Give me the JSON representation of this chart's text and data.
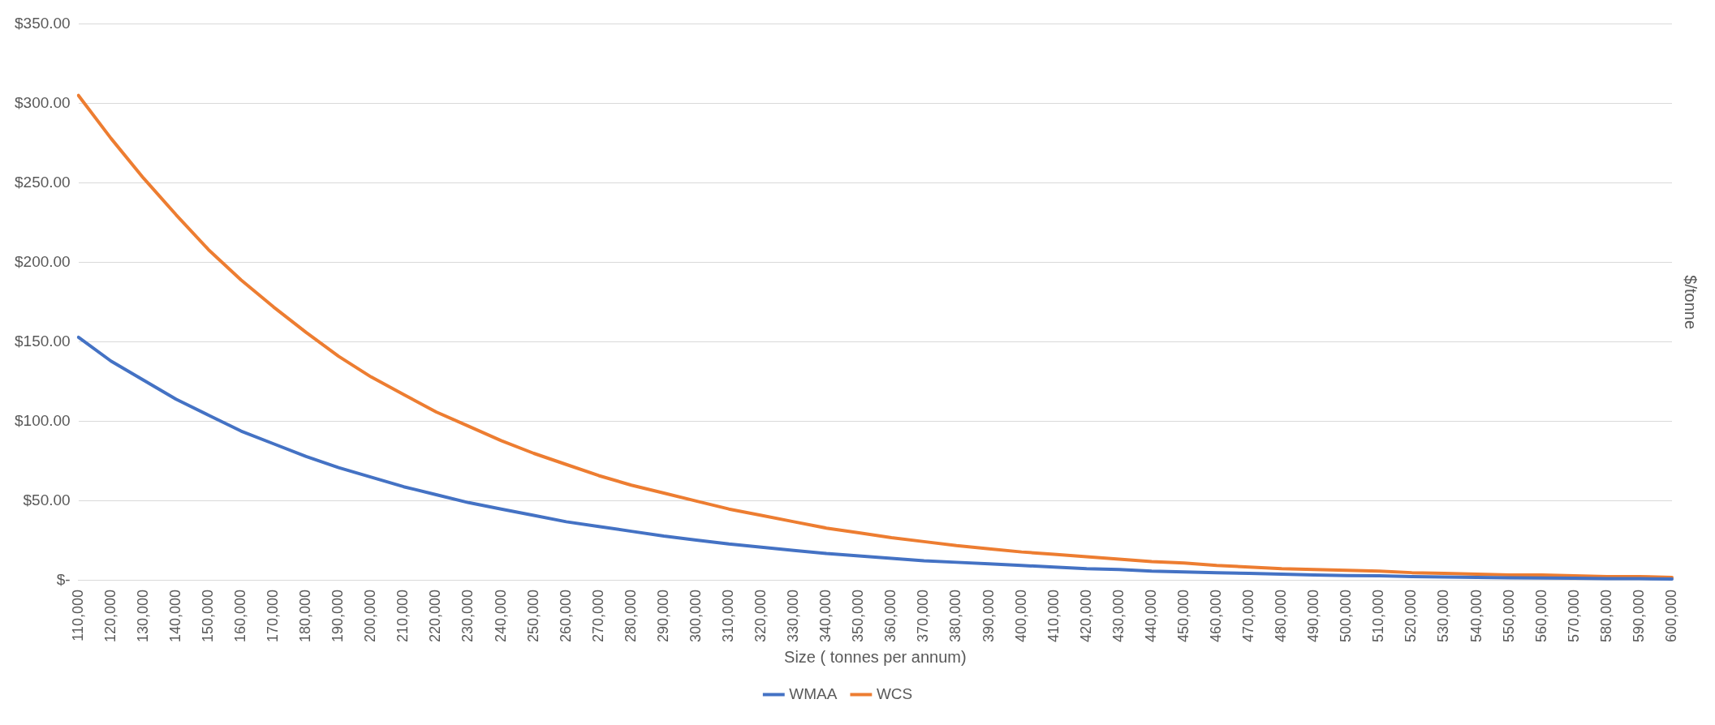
{
  "chart_data": {
    "type": "line",
    "xlabel": "Size ( tonnes per annum)",
    "ylabel": "$/tonne",
    "categories": [
      "110,000",
      "120,000",
      "130,000",
      "140,000",
      "150,000",
      "160,000",
      "170,000",
      "180,000",
      "190,000",
      "200,000",
      "210,000",
      "220,000",
      "230,000",
      "240,000",
      "250,000",
      "260,000",
      "270,000",
      "280,000",
      "290,000",
      "300,000",
      "310,000",
      "320,000",
      "330,000",
      "340,000",
      "350,000",
      "360,000",
      "370,000",
      "380,000",
      "390,000",
      "400,000",
      "410,000",
      "420,000",
      "430,000",
      "440,000",
      "450,000",
      "460,000",
      "470,000",
      "480,000",
      "490,000",
      "500,000",
      "510,000",
      "520,000",
      "530,000",
      "540,000",
      "550,000",
      "560,000",
      "570,000",
      "580,000",
      "590,000",
      "600,000"
    ],
    "series": [
      {
        "name": "WMAA",
        "color": "#4472c4",
        "values": [
          153,
          138,
          126,
          114,
          104,
          94,
          86,
          78,
          71,
          65,
          59,
          54,
          49,
          45,
          41,
          37,
          34,
          31,
          28,
          25.5,
          23,
          21,
          19,
          17,
          15.5,
          14,
          12.5,
          11.5,
          10.5,
          9.5,
          8.5,
          7.5,
          7,
          6,
          5.5,
          5,
          4.5,
          4,
          3.5,
          3.2,
          3,
          2.5,
          2.3,
          2,
          1.8,
          1.6,
          1.5,
          1.3,
          1.2,
          1
        ]
      },
      {
        "name": "WCS",
        "color": "#ed7d31",
        "values": [
          305,
          278,
          253,
          230,
          208,
          189,
          172,
          156,
          141,
          128,
          117,
          106,
          97,
          88,
          80,
          73,
          66,
          60,
          55,
          50,
          45,
          41,
          37,
          33,
          30,
          27,
          24.5,
          22,
          20,
          18,
          16.5,
          15,
          13.5,
          12,
          11,
          9.5,
          8.5,
          7.5,
          7,
          6.5,
          6,
          5,
          4.5,
          4,
          3.5,
          3.5,
          3,
          2.5,
          2.5,
          2
        ]
      }
    ],
    "ylim": [
      0,
      350
    ],
    "yticks": [
      {
        "value": 0,
        "label": "$-"
      },
      {
        "value": 50,
        "label": "$50.00"
      },
      {
        "value": 100,
        "label": "$100.00"
      },
      {
        "value": 150,
        "label": "$150.00"
      },
      {
        "value": 200,
        "label": "$200.00"
      },
      {
        "value": 250,
        "label": "$250.00"
      },
      {
        "value": 300,
        "label": "$300.00"
      },
      {
        "value": 350,
        "label": "$350.00"
      }
    ],
    "grid": "y",
    "legend": "bottom",
    "marker": "none",
    "line_style": "solid"
  }
}
